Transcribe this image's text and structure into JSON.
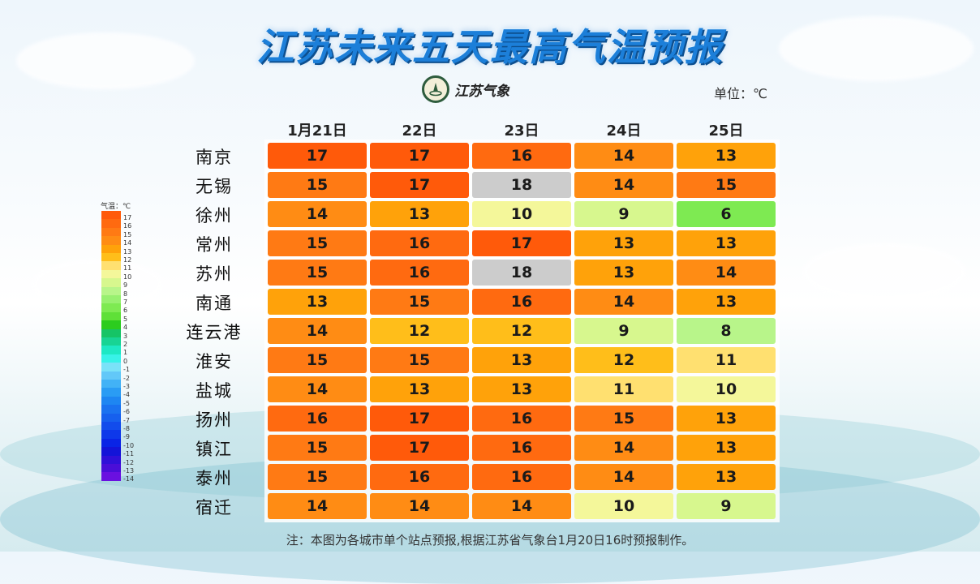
{
  "title": "江苏未来五天最高气温预报",
  "logo": {
    "text": "江苏气象",
    "icon": "jiangsu-meteorology-emblem-icon"
  },
  "unit": "单位：℃",
  "dates": [
    "1月21日",
    "22日",
    "23日",
    "24日",
    "25日"
  ],
  "rows": [
    {
      "city": "南京",
      "temps": [
        17,
        17,
        16,
        14,
        13
      ]
    },
    {
      "city": "无锡",
      "temps": [
        15,
        17,
        18,
        14,
        15
      ]
    },
    {
      "city": "徐州",
      "temps": [
        14,
        13,
        10,
        9,
        6
      ]
    },
    {
      "city": "常州",
      "temps": [
        15,
        16,
        17,
        13,
        13
      ]
    },
    {
      "city": "苏州",
      "temps": [
        15,
        16,
        18,
        13,
        14
      ]
    },
    {
      "city": "南通",
      "temps": [
        13,
        15,
        16,
        14,
        13
      ]
    },
    {
      "city": "连云港",
      "temps": [
        14,
        12,
        12,
        9,
        8
      ]
    },
    {
      "city": "淮安",
      "temps": [
        15,
        15,
        13,
        12,
        11
      ]
    },
    {
      "city": "盐城",
      "temps": [
        14,
        13,
        13,
        11,
        10
      ]
    },
    {
      "city": "扬州",
      "temps": [
        16,
        17,
        16,
        15,
        13
      ]
    },
    {
      "city": "镇江",
      "temps": [
        15,
        17,
        16,
        14,
        13
      ]
    },
    {
      "city": "泰州",
      "temps": [
        15,
        16,
        16,
        14,
        13
      ]
    },
    {
      "city": "宿迁",
      "temps": [
        14,
        14,
        14,
        10,
        9
      ]
    }
  ],
  "legend": {
    "title": "气温：℃",
    "levels": [
      {
        "value": 17,
        "color": "#ff5a0a"
      },
      {
        "value": 16,
        "color": "#ff6a10"
      },
      {
        "value": 15,
        "color": "#ff7a14"
      },
      {
        "value": 14,
        "color": "#ff8c14"
      },
      {
        "value": 13,
        "color": "#ffa20a"
      },
      {
        "value": 12,
        "color": "#ffbe1a"
      },
      {
        "value": 11,
        "color": "#ffe070"
      },
      {
        "value": 10,
        "color": "#f4f79a"
      },
      {
        "value": 9,
        "color": "#d7f78e"
      },
      {
        "value": 8,
        "color": "#b8f58a"
      },
      {
        "value": 7,
        "color": "#98f070"
      },
      {
        "value": 6,
        "color": "#7eea52"
      },
      {
        "value": 5,
        "color": "#5fe038"
      },
      {
        "value": 4,
        "color": "#2ccc1e"
      },
      {
        "value": 3,
        "color": "#16c466"
      },
      {
        "value": 2,
        "color": "#18d494"
      },
      {
        "value": 1,
        "color": "#1ee8c4"
      },
      {
        "value": 0,
        "color": "#38f2e8"
      },
      {
        "value": -1,
        "color": "#7ae2f8"
      },
      {
        "value": -2,
        "color": "#62c8f8"
      },
      {
        "value": -3,
        "color": "#42b2f6"
      },
      {
        "value": -4,
        "color": "#2a9cf4"
      },
      {
        "value": -5,
        "color": "#1e86f2"
      },
      {
        "value": -6,
        "color": "#1a72f0"
      },
      {
        "value": -7,
        "color": "#1660ee"
      },
      {
        "value": -8,
        "color": "#124cec"
      },
      {
        "value": -9,
        "color": "#0e38ea"
      },
      {
        "value": -10,
        "color": "#0a24e6"
      },
      {
        "value": -11,
        "color": "#1414d8"
      },
      {
        "value": -12,
        "color": "#3010d8"
      },
      {
        "value": -13,
        "color": "#4a0ed8"
      },
      {
        "value": -14,
        "color": "#6a10e0"
      }
    ]
  },
  "footnote": "注：本图为各城市单个站点预报,根据江苏省气象台1月20日16时预报制作。"
}
